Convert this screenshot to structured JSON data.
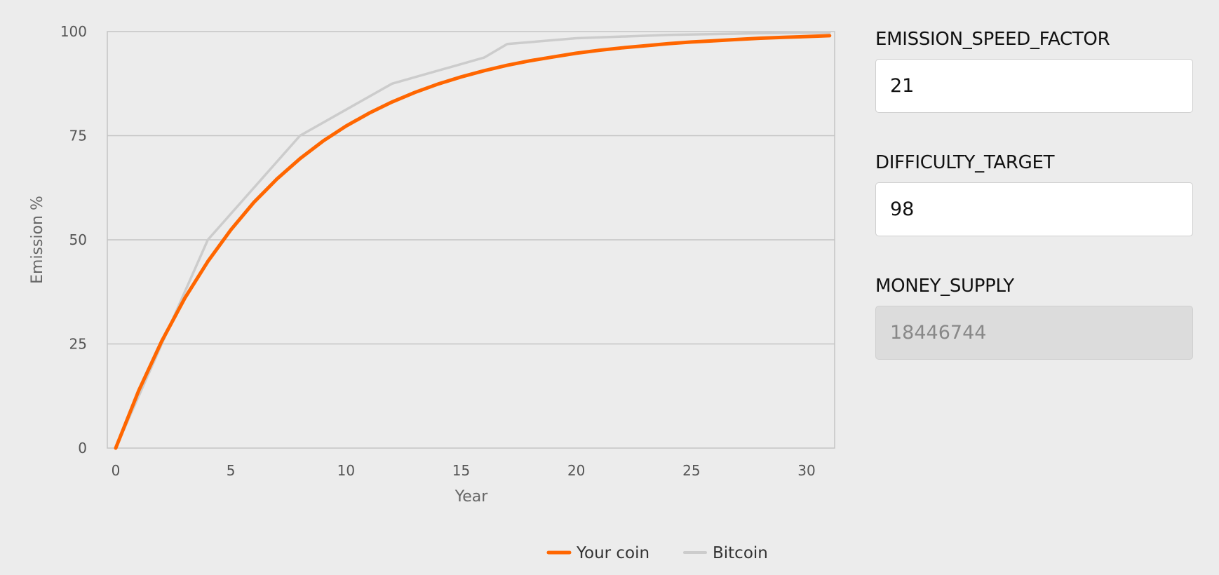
{
  "params": {
    "emission_speed_factor": {
      "label": "EMISSION_SPEED_FACTOR",
      "value": "21"
    },
    "difficulty_target": {
      "label": "DIFFICULTY_TARGET",
      "value": "98"
    },
    "money_supply": {
      "label": "MONEY_SUPPLY",
      "value": "18446744",
      "readonly": true
    }
  },
  "chart_data": {
    "type": "line",
    "title": "",
    "xlabel": "Year",
    "ylabel": "Emission %",
    "xlim": [
      0,
      31
    ],
    "ylim": [
      0,
      100
    ],
    "x_ticks": [
      "0",
      "5",
      "10",
      "15",
      "20",
      "25",
      "30"
    ],
    "y_ticks": [
      "0",
      "25",
      "50",
      "75",
      "100"
    ],
    "grid": "horizontal",
    "legend_position": "bottom-center",
    "series": [
      {
        "name": "Your coin",
        "color": "#ff6600",
        "x": [
          0,
          1,
          2,
          3,
          4,
          5,
          6,
          7,
          8,
          9,
          10,
          11,
          12,
          13,
          14,
          15,
          16,
          17,
          18,
          19,
          20,
          21,
          22,
          23,
          24,
          25,
          26,
          27,
          28,
          29,
          30,
          31
        ],
        "y": [
          0,
          13.8,
          25.7,
          36.0,
          44.8,
          52.4,
          59.0,
          64.6,
          69.5,
          73.7,
          77.3,
          80.4,
          83.1,
          85.4,
          87.4,
          89.1,
          90.6,
          91.9,
          93.0,
          93.9,
          94.8,
          95.5,
          96.1,
          96.6,
          97.1,
          97.5,
          97.8,
          98.1,
          98.4,
          98.6,
          98.8,
          99.0
        ]
      },
      {
        "name": "Bitcoin",
        "color": "#cccccc",
        "x": [
          0,
          4,
          8,
          12,
          16,
          17,
          20,
          24,
          28,
          31
        ],
        "y": [
          0,
          50,
          75,
          87.5,
          93.75,
          97,
          98.4,
          99.2,
          99.6,
          99.8
        ]
      }
    ]
  }
}
